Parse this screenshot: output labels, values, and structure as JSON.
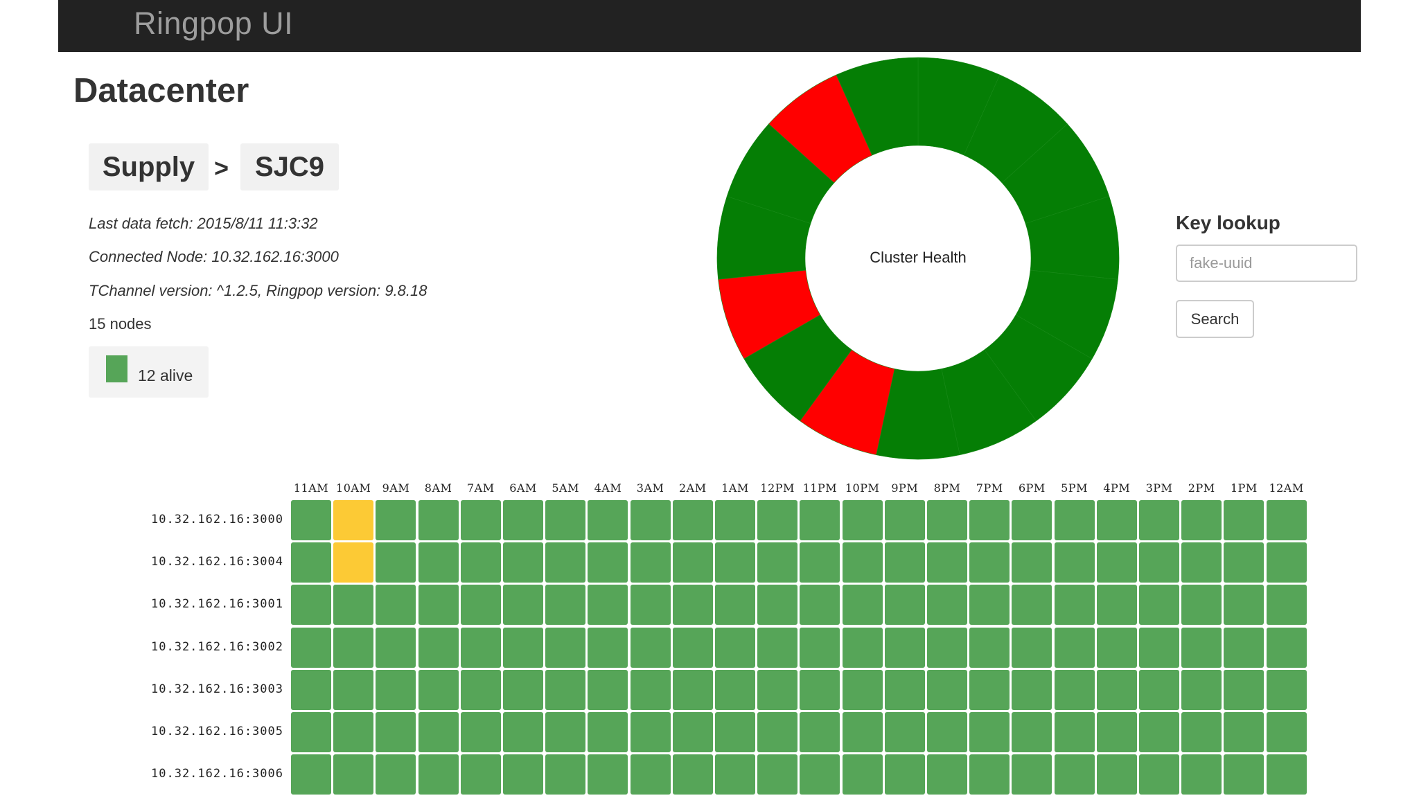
{
  "app": {
    "title": "Ringpop UI"
  },
  "page": {
    "title": "Datacenter"
  },
  "breadcrumb": {
    "items": [
      "Supply",
      "SJC9"
    ],
    "separator": ">"
  },
  "info": {
    "last_fetch": "Last data fetch: 2015/8/11 11:3:32",
    "connected_node": "Connected Node: 10.32.162.16:3000",
    "versions": "TChannel version: ^1.2.5, Ringpop version: 9.8.18",
    "node_count": "15 nodes"
  },
  "legend": {
    "alive_label": "12 alive",
    "alive_color": "#56a558"
  },
  "cluster_health": {
    "label": "Cluster Health",
    "colors": {
      "healthy": "#057e05",
      "faulty": "#ff0000"
    },
    "segments": [
      {
        "share": 1,
        "status": "healthy"
      },
      {
        "share": 1,
        "status": "healthy"
      },
      {
        "share": 1,
        "status": "healthy"
      },
      {
        "share": 1,
        "status": "healthy"
      },
      {
        "share": 1,
        "status": "healthy"
      },
      {
        "share": 1,
        "status": "healthy"
      },
      {
        "share": 1,
        "status": "healthy"
      },
      {
        "share": 1,
        "status": "healthy"
      },
      {
        "share": 1,
        "status": "faulty"
      },
      {
        "share": 1,
        "status": "healthy"
      },
      {
        "share": 1,
        "status": "faulty"
      },
      {
        "share": 1,
        "status": "healthy"
      },
      {
        "share": 1,
        "status": "healthy"
      },
      {
        "share": 1,
        "status": "faulty"
      },
      {
        "share": 1,
        "status": "healthy"
      }
    ]
  },
  "key_lookup": {
    "title": "Key lookup",
    "placeholder": "fake-uuid",
    "button_label": "Search"
  },
  "heatmap": {
    "columns": [
      "11AM",
      "10AM",
      "9AM",
      "8AM",
      "7AM",
      "6AM",
      "5AM",
      "4AM",
      "3AM",
      "2AM",
      "1AM",
      "12PM",
      "11PM",
      "10PM",
      "9PM",
      "8PM",
      "7PM",
      "6PM",
      "5PM",
      "4PM",
      "3PM",
      "2PM",
      "1PM",
      "12AM"
    ],
    "rows": [
      "10.32.162.16:3000",
      "10.32.162.16:3004",
      "10.32.162.16:3001",
      "10.32.162.16:3002",
      "10.32.162.16:3003",
      "10.32.162.16:3005",
      "10.32.162.16:3006"
    ],
    "status_colors": {
      "alive": "#56a558",
      "suspect": "#fcca35"
    },
    "suspect_cells": [
      [
        0,
        1
      ],
      [
        1,
        1
      ]
    ]
  }
}
